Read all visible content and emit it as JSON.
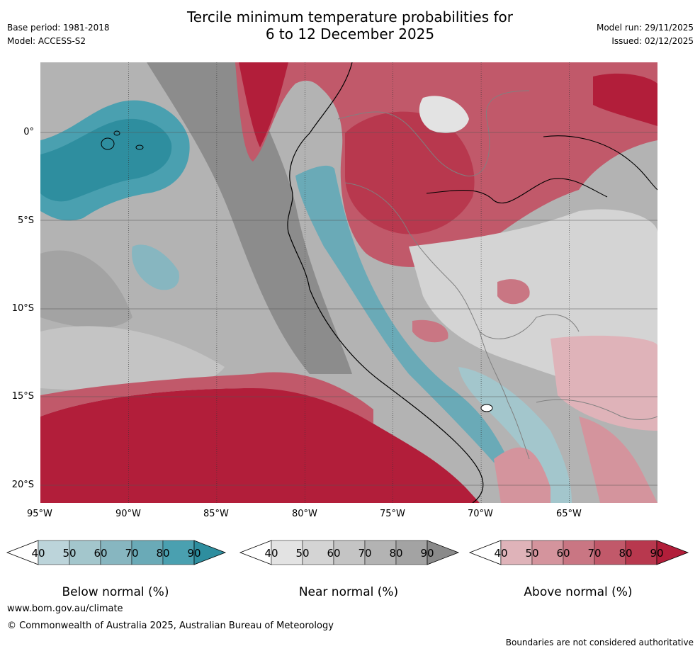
{
  "header": {
    "base_period": "Base period: 1981-2018",
    "model": "Model: ACCESS-S2",
    "title_line1": "Tercile minimum temperature probabilities for",
    "title_line2": "6 to 12 December 2025",
    "model_run": "Model run: 29/11/2025",
    "issued": "Issued: 02/12/2025"
  },
  "map": {
    "lat_labels": [
      "0°",
      "5°S",
      "10°S",
      "15°S",
      "20°S"
    ],
    "lon_labels": [
      "95°W",
      "90°W",
      "85°W",
      "80°W",
      "75°W",
      "70°W",
      "65°W"
    ]
  },
  "legends": [
    {
      "label": "Below normal (%)",
      "ticks": [
        "40",
        "50",
        "60",
        "70",
        "80",
        "90"
      ],
      "colors": [
        "#bcd4da",
        "#a3c6cc",
        "#87b6c0",
        "#6aaab7",
        "#4aa0b0",
        "#2e8e9f"
      ]
    },
    {
      "label": "Near normal (%)",
      "ticks": [
        "40",
        "50",
        "60",
        "70",
        "80",
        "90"
      ],
      "colors": [
        "#e3e3e3",
        "#d4d4d4",
        "#c4c4c4",
        "#b3b3b3",
        "#a3a3a3",
        "#8a8a8a"
      ]
    },
    {
      "label": "Above normal (%)",
      "ticks": [
        "40",
        "50",
        "60",
        "70",
        "80",
        "90"
      ],
      "colors": [
        "#dfb3b9",
        "#d4949d",
        "#c97683",
        "#c1596a",
        "#b8384e",
        "#b21e3a"
      ]
    }
  ],
  "footer": {
    "website": "www.bom.gov.au/climate",
    "copyright": "© Commonwealth of Australia 2025, Australian Bureau of Meteorology",
    "disclaimer": "Boundaries are not considered authoritative"
  }
}
